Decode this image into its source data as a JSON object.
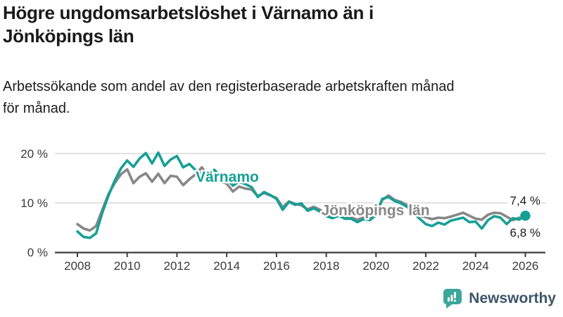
{
  "header": {
    "title_lines": [
      "Högre ungdomsarbetslöshet i Värnamo än i",
      "Jönköpings län"
    ],
    "subtitle_lines": [
      "Arbetssökande som andel av den registerbaserade arbetskraften månad",
      "för månad."
    ]
  },
  "chart_data": {
    "type": "line",
    "title": "Högre ungdomsarbetslöshet i Värnamo än i Jönköpings län",
    "subtitle": "Arbetssökande som andel av den registerbaserade arbetskraften månad för månad.",
    "x_start": 2008.0,
    "x_step": 0.25,
    "x_end": 2026.0,
    "ylim": [
      0,
      21.5
    ],
    "grid": "horizontal",
    "legend_position": "inline-labels",
    "x_ticks": [
      2008,
      2010,
      2012,
      2014,
      2016,
      2018,
      2020,
      2022,
      2024,
      2026
    ],
    "y_ticks": [
      {
        "value": 0,
        "label": "0 %"
      },
      {
        "value": 10,
        "label": "10 %"
      },
      {
        "value": 20,
        "label": "20 %"
      }
    ],
    "series": [
      {
        "name": "Jönköpings län",
        "color": "#878787",
        "end_marker": false,
        "values": [
          5.7,
          4.8,
          4.4,
          5.3,
          8.6,
          11.8,
          14.0,
          15.8,
          16.8,
          14.0,
          15.3,
          16.0,
          14.3,
          15.9,
          14.0,
          15.5,
          15.3,
          13.6,
          14.8,
          15.8,
          17.2,
          15.4,
          15.0,
          14.4,
          13.9,
          12.3,
          13.3,
          12.9,
          12.7,
          11.4,
          12.0,
          11.5,
          11.0,
          9.1,
          10.3,
          9.8,
          9.5,
          8.7,
          9.2,
          8.6,
          7.6,
          7.2,
          7.6,
          7.1,
          7.0,
          6.6,
          7.0,
          6.8,
          7.8,
          10.6,
          11.5,
          10.6,
          10.2,
          9.5,
          8.5,
          7.4,
          7.1,
          6.7,
          7.0,
          6.9,
          7.2,
          7.6,
          8.0,
          7.4,
          6.8,
          6.6,
          7.6,
          8.0,
          7.9,
          7.2,
          6.5,
          7.0,
          6.8
        ]
      },
      {
        "name": "Värnamo",
        "color": "#16a095",
        "end_marker": true,
        "values": [
          4.2,
          3.1,
          2.9,
          3.8,
          8.0,
          11.5,
          14.5,
          17.0,
          18.6,
          17.3,
          19.0,
          20.1,
          18.0,
          20.2,
          17.5,
          18.8,
          19.5,
          17.2,
          17.9,
          16.6,
          15.8,
          15.2,
          16.7,
          15.4,
          14.9,
          13.5,
          14.3,
          13.8,
          13.2,
          11.2,
          12.2,
          11.6,
          10.8,
          8.6,
          10.2,
          9.6,
          9.9,
          8.4,
          8.9,
          8.2,
          7.3,
          6.9,
          7.4,
          6.8,
          6.8,
          6.1,
          6.7,
          6.5,
          7.5,
          10.8,
          11.2,
          10.4,
          9.9,
          9.2,
          8.0,
          6.8,
          5.7,
          5.3,
          6.0,
          5.6,
          6.4,
          6.7,
          7.0,
          6.1,
          6.2,
          4.8,
          6.5,
          7.3,
          7.0,
          5.7,
          6.9,
          6.6,
          7.4
        ]
      }
    ],
    "inline_labels": [
      {
        "text": "Värnamo",
        "color": "#16a095",
        "x": 2012.75,
        "y": 15.3
      },
      {
        "text": "Jönköpings län",
        "color": "#878787",
        "x": 2017.8,
        "y": 8.5
      }
    ],
    "end_labels": [
      {
        "text": "7,4 %",
        "series": "Värnamo",
        "y": 10.5
      },
      {
        "text": "6,8 %",
        "series": "Jönköpings län",
        "y": 4.0
      }
    ],
    "colors": {
      "gridline": "#d9d9d9",
      "axis": "#3e3e3e",
      "tick_label": "#3a3a3a",
      "end_label": "#1a1a1a"
    }
  },
  "footer": {
    "brand": "Newsworthy",
    "logo_icon": "bar-chart-speech-bubble",
    "logo_color": "#3ba69b",
    "brand_text_color": "#3d5568"
  }
}
